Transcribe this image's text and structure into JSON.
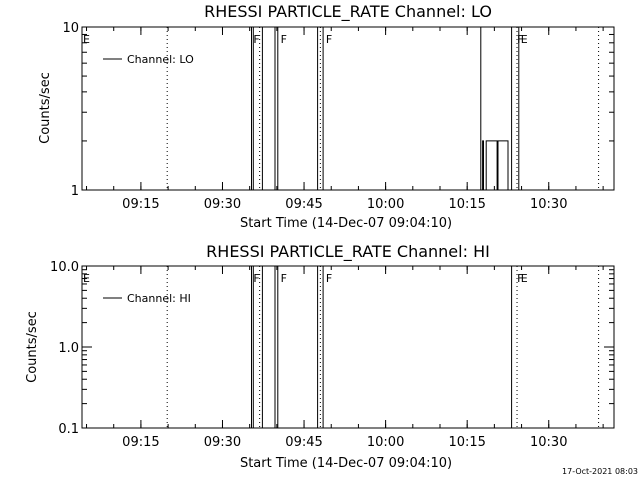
{
  "footer": {
    "date": "17-Oct-2021 08:03"
  },
  "chart_data": [
    {
      "type": "line",
      "title": "RHESSI PARTICLE_RATE Channel: LO",
      "xlabel": "Start Time (14-Dec-07 09:04:10)",
      "ylabel": "Counts/sec",
      "xlim": [
        "09:04:10",
        "10:42:00"
      ],
      "ylim": [
        1,
        10
      ],
      "yscale": "log",
      "x_ticks": [
        "09:15",
        "09:30",
        "09:45",
        "10:00",
        "10:15",
        "10:30"
      ],
      "y_ticks": [
        "1",
        "10"
      ],
      "legend": {
        "position": "top-left",
        "entries": [
          "Channel: LO"
        ]
      },
      "flag_labels": [
        {
          "x": "09:04:10",
          "label": "E"
        },
        {
          "x": "09:35:30",
          "label": "F"
        },
        {
          "x": "09:40:30",
          "label": "F"
        },
        {
          "x": "09:48:50",
          "label": "F"
        },
        {
          "x": "10:24:00",
          "label": "F"
        },
        {
          "x": "10:24:40",
          "label": "E"
        }
      ],
      "vertical_markers": [
        "09:19:50",
        "09:36:50",
        "09:48:00",
        "10:24:10",
        "10:39:10"
      ],
      "series": [
        {
          "name": "Channel: LO",
          "x": [
            "09:04:10",
            "09:35:20",
            "09:35:20",
            "09:35:40",
            "09:35:40",
            "09:37:20",
            "09:37:20",
            "09:39:40",
            "09:39:40",
            "09:40:10",
            "09:40:10",
            "09:47:30",
            "09:47:30",
            "09:48:30",
            "09:48:30",
            "10:17:30",
            "10:17:30",
            "10:17:50",
            "10:17:50",
            "10:18:00",
            "10:18:00",
            "10:18:30",
            "10:18:30",
            "10:20:30",
            "10:20:30",
            "10:20:40",
            "10:20:40",
            "10:22:30",
            "10:22:30",
            "10:23:10",
            "10:23:10",
            "10:24:30",
            "10:24:30"
          ],
          "y": [
            1,
            1,
            10,
            10,
            1,
            1,
            10,
            10,
            1,
            1,
            10,
            10,
            1,
            1,
            10,
            10,
            1,
            1,
            2,
            2,
            1,
            1,
            2,
            2,
            1,
            1,
            2,
            2,
            1,
            1,
            10,
            10,
            1
          ]
        }
      ]
    },
    {
      "type": "line",
      "title": "RHESSI PARTICLE_RATE Channel: HI",
      "xlabel": "Start Time (14-Dec-07 09:04:10)",
      "ylabel": "Counts/sec",
      "xlim": [
        "09:04:10",
        "10:42:00"
      ],
      "ylim": [
        0.1,
        10
      ],
      "yscale": "log",
      "x_ticks": [
        "09:15",
        "09:30",
        "09:45",
        "10:00",
        "10:15",
        "10:30"
      ],
      "y_ticks": [
        "0.1",
        "1.0",
        "10.0"
      ],
      "legend": {
        "position": "top-left",
        "entries": [
          "Channel: HI"
        ]
      },
      "flag_labels": [
        {
          "x": "09:04:10",
          "label": "E"
        },
        {
          "x": "09:35:30",
          "label": "F"
        },
        {
          "x": "09:40:30",
          "label": "F"
        },
        {
          "x": "09:48:50",
          "label": "F"
        },
        {
          "x": "10:24:00",
          "label": "F"
        },
        {
          "x": "10:24:40",
          "label": "E"
        }
      ],
      "vertical_markers": [
        "09:19:50",
        "09:36:50",
        "09:48:00",
        "10:24:10",
        "10:39:10"
      ],
      "series": [
        {
          "name": "Channel: HI",
          "x": [
            "09:04:10",
            "09:35:20",
            "09:35:20",
            "09:35:40",
            "09:35:40",
            "09:37:20",
            "09:37:20",
            "09:39:40",
            "09:39:40",
            "09:40:10",
            "09:40:10",
            "09:47:30",
            "09:47:30",
            "09:48:30",
            "09:48:30",
            "10:23:10",
            "10:23:10",
            "10:24:30",
            "10:24:30"
          ],
          "y": [
            0.1,
            0.1,
            10,
            10,
            0.1,
            0.1,
            10,
            10,
            0.1,
            0.1,
            10,
            10,
            0.1,
            0.1,
            10,
            10,
            0.1,
            0.1,
            0.1
          ]
        }
      ]
    }
  ]
}
